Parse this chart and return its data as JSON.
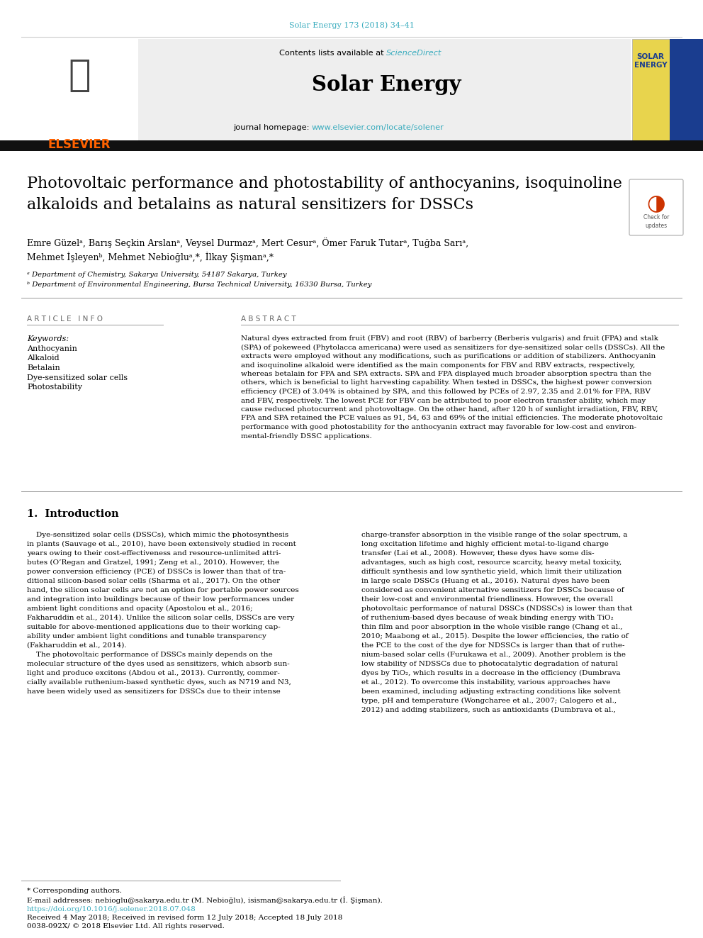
{
  "bg_color": "#ffffff",
  "journal_ref": "Solar Energy 173 (2018) 34–41",
  "journal_ref_color": "#3aacbe",
  "journal_name": "Solar Energy",
  "contents_text": "Contents lists available at ",
  "sciencedirect_text": "ScienceDirect",
  "sciencedirect_color": "#3aacbe",
  "homepage_prefix": "journal homepage: ",
  "homepage_url": "www.elsevier.com/locate/solener",
  "homepage_url_color": "#3aacbe",
  "title_line1": "Photovoltaic performance and photostability of anthocyanins, isoquinoline",
  "title_line2": "alkaloids and betalains as natural sensitizers for DSSCs",
  "author_line1": "Emre Güzelᵃ, Barış Seçkin Arslanᵃ, Veysel Durmazᵃ, Mert Cesurᵃ, Ömer Faruk Tutarᵃ, Tuğba Sarıᵃ,",
  "author_line2": "Mehmet İşleyenᵇ, Mehmet Nebioğluᵃ,*, İlkay Şişmanᵃ,*",
  "affil_a": "ᵃ Department of Chemistry, Sakarya University, 54187 Sakarya, Turkey",
  "affil_b": "ᵇ Department of Environmental Engineering, Bursa Technical University, 16330 Bursa, Turkey",
  "article_info_header": "ARTICLE INFO",
  "keywords_label": "Keywords:",
  "keywords": [
    "Anthocyanin",
    "Alkaloid",
    "Betalain",
    "Dye-sensitized solar cells",
    "Photostability"
  ],
  "abstract_header": "ABSTRACT",
  "abstract_lines": [
    "Natural dyes extracted from fruit (FBV) and root (RBV) of barberry (Berberis vulgaris) and fruit (FPA) and stalk",
    "(SPA) of pokeweed (Phytolacca americana) were used as sensitizers for dye-sensitized solar cells (DSSCs). All the",
    "extracts were employed without any modifications, such as purifications or addition of stabilizers. Anthocyanin",
    "and isoquinoline alkaloid were identified as the main components for FBV and RBV extracts, respectively,",
    "whereas betalain for FPA and SPA extracts. SPA and FPA displayed much broader absorption spectra than the",
    "others, which is beneficial to light harvesting capability. When tested in DSSCs, the highest power conversion",
    "efficiency (PCE) of 3.04% is obtained by SPA, and this followed by PCEs of 2.97, 2.35 and 2.01% for FPA, RBV",
    "and FBV, respectively. The lowest PCE for FBV can be attributed to poor electron transfer ability, which may",
    "cause reduced photocurrent and photovoltage. On the other hand, after 120 h of sunlight irradiation, FBV, RBV,",
    "FPA and SPA retained the PCE values as 91, 54, 63 and 69% of the initial efficiencies. The moderate photovoltaic",
    "performance with good photostability for the anthocyanin extract may favorable for low-cost and environ-",
    "mental-friendly DSSC applications."
  ],
  "intro_header": "1.  Introduction",
  "intro_col1_lines": [
    "    Dye-sensitized solar cells (DSSCs), which mimic the photosynthesis",
    "in plants (Sauvage et al., 2010), have been extensively studied in recent",
    "years owing to their cost-effectiveness and resource-unlimited attri-",
    "butes (O’Regan and Gratzel, 1991; Zeng et al., 2010). However, the",
    "power conversion efficiency (PCE) of DSSCs is lower than that of tra-",
    "ditional silicon-based solar cells (Sharma et al., 2017). On the other",
    "hand, the silicon solar cells are not an option for portable power sources",
    "and integration into buildings because of their low performances under",
    "ambient light conditions and opacity (Apostolou et al., 2016;",
    "Fakharuddin et al., 2014). Unlike the silicon solar cells, DSSCs are very",
    "suitable for above-mentioned applications due to their working cap-",
    "ability under ambient light conditions and tunable transparency",
    "(Fakharuddin et al., 2014).",
    "    The photovoltaic performance of DSSCs mainly depends on the",
    "molecular structure of the dyes used as sensitizers, which absorb sun-",
    "light and produce excitons (Abdou et al., 2013). Currently, commer-",
    "cially available ruthenium-based synthetic dyes, such as N719 and N3,",
    "have been widely used as sensitizers for DSSCs due to their intense"
  ],
  "intro_col2_lines": [
    "charge-transfer absorption in the visible range of the solar spectrum, a",
    "long excitation lifetime and highly efficient metal-to-ligand charge",
    "transfer (Lai et al., 2008). However, these dyes have some dis-",
    "advantages, such as high cost, resource scarcity, heavy metal toxicity,",
    "difficult synthesis and low synthetic yield, which limit their utilization",
    "in large scale DSSCs (Huang et al., 2016). Natural dyes have been",
    "considered as convenient alternative sensitizers for DSSCs because of",
    "their low-cost and environmental friendliness. However, the overall",
    "photovoltaic performance of natural DSSCs (NDSSCs) is lower than that",
    "of ruthenium-based dyes because of weak binding energy with TiO₂",
    "thin film and poor absorption in the whole visible range (Chang et al.,",
    "2010; Maabong et al., 2015). Despite the lower efficiencies, the ratio of",
    "the PCE to the cost of the dye for NDSSCs is larger than that of ruthe-",
    "nium-based solar cells (Furukawa et al., 2009). Another problem is the",
    "low stability of NDSSCs due to photocatalytic degradation of natural",
    "dyes by TiO₂, which results in a decrease in the efficiency (Dumbrava",
    "et al., 2012). To overcome this instability, various approaches have",
    "been examined, including adjusting extracting conditions like solvent",
    "type, pH and temperature (Wongcharee et al., 2007; Calogero et al.,",
    "2012) and adding stabilizers, such as antioxidants (Dumbrava et al.,"
  ],
  "footnote_star": "* Corresponding authors.",
  "footnote_email": "E-mail addresses: nebioglu@sakarya.edu.tr (M. Nebioğlu), isisman@sakarya.edu.tr (İ. Şişman).",
  "footnote_doi": "https://doi.org/10.1016/j.solener.2018.07.048",
  "footnote_received": "Received 4 May 2018; Received in revised form 12 July 2018; Accepted 18 July 2018",
  "footnote_issn": "0038-092X/ © 2018 Elsevier Ltd. All rights reserved.",
  "black_bar_color": "#111111",
  "header_bg_color": "#eeeeee",
  "elsevier_color": "#FF6200",
  "separator_color": "#999999",
  "thin_line_color": "#cccccc"
}
